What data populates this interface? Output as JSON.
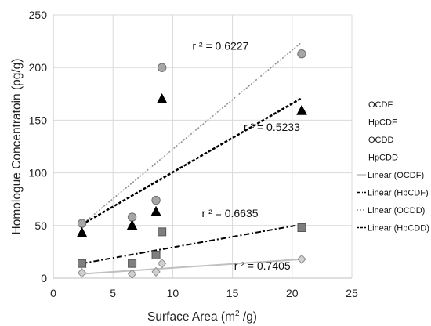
{
  "chart_data": {
    "type": "scatter",
    "xlabel_main": "Surface Area (m",
    "xlabel_sup": "2",
    "xlabel_tail": " /g)",
    "ylabel": "Homologue Concentratoin (pg/g)",
    "xlim": [
      0,
      25
    ],
    "ylim": [
      0,
      250
    ],
    "x_ticks": [
      0,
      5,
      10,
      15,
      20,
      25
    ],
    "y_ticks": [
      0,
      50,
      100,
      150,
      200,
      250
    ],
    "grid": "both",
    "legend_position": "right",
    "series": [
      {
        "name": "OCDF",
        "marker": "circle",
        "color": "#a6a6a6",
        "stroke": "#6f6f6f",
        "points": [
          [
            2.4,
            52
          ],
          [
            6.6,
            58
          ],
          [
            8.6,
            74
          ],
          [
            9.1,
            200
          ],
          [
            20.8,
            213
          ]
        ]
      },
      {
        "name": "HpCDF",
        "marker": "square",
        "color": "#7f7f7f",
        "stroke": "#555555",
        "points": [
          [
            2.4,
            14
          ],
          [
            6.6,
            14
          ],
          [
            8.6,
            22
          ],
          [
            9.1,
            44
          ],
          [
            20.8,
            48
          ]
        ]
      },
      {
        "name": "OCDD",
        "marker": "triangle",
        "color": "#000000",
        "stroke": "#000000",
        "points": [
          [
            2.4,
            43
          ],
          [
            6.6,
            50
          ],
          [
            8.6,
            63
          ],
          [
            9.1,
            170
          ],
          [
            20.8,
            159
          ]
        ]
      },
      {
        "name": "HpCDD",
        "marker": "diamond",
        "color": "#d0d0d0",
        "stroke": "#8c8c8c",
        "points": [
          [
            2.4,
            5
          ],
          [
            6.6,
            4
          ],
          [
            8.6,
            6
          ],
          [
            9.1,
            14
          ],
          [
            20.8,
            18
          ]
        ]
      }
    ],
    "trendlines": [
      {
        "name": "Linear (OCDF)",
        "x": [
          2.4,
          20.8
        ],
        "y": [
          4,
          18
        ],
        "color": "#bfbfbf",
        "dash": "",
        "width": 2
      },
      {
        "name": "Linear (HpCDF)",
        "x": [
          2.4,
          20.8
        ],
        "y": [
          14,
          51
        ],
        "color": "#000000",
        "dash": "7,3,2,3",
        "width": 2
      },
      {
        "name": "Linear (OCDD)",
        "x": [
          2.4,
          20.8
        ],
        "y": [
          51,
          224
        ],
        "color": "#8c8c8c",
        "dash": "2,2",
        "width": 1.5
      },
      {
        "name": "Linear (HpCDD)",
        "x": [
          2.4,
          20.8
        ],
        "y": [
          51,
          171
        ],
        "color": "#000000",
        "dash": "4,2",
        "width": 2.5
      }
    ],
    "annotations": [
      {
        "text": "r ² = 0.6227",
        "x": 14.0,
        "y": 217
      },
      {
        "text": "r ² = 0.5233",
        "x": 18.3,
        "y": 140
      },
      {
        "text": "r ² = 0.6635",
        "x": 14.8,
        "y": 58
      },
      {
        "text": "r ² = 0.7405",
        "x": 17.5,
        "y": 8
      }
    ],
    "legend": [
      {
        "label": "OCDF"
      },
      {
        "label": "HpCDF"
      },
      {
        "label": "OCDD"
      },
      {
        "label": "HpCDD"
      },
      {
        "label": "Linear (OCDF)",
        "color": "#bfbfbf",
        "dash": ""
      },
      {
        "label": "Linear (HpCDF)",
        "color": "#000000",
        "dash": "5,2,1,2"
      },
      {
        "label": "Linear (OCDD)",
        "color": "#8c8c8c",
        "dash": "2,2"
      },
      {
        "label": "Linear (HpCDD)",
        "color": "#000000",
        "dash": "3,2"
      }
    ]
  }
}
